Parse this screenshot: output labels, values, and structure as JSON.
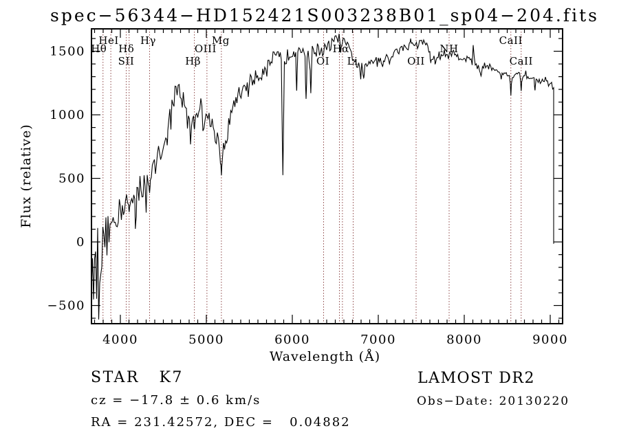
{
  "chart_data": {
    "type": "line",
    "title": "spec−56344−HD152421S003238B01_sp04−204.fits",
    "xlabel": "Wavelength (Å)",
    "ylabel": "Flux (relative)",
    "xlim": [
      3664,
      9144
    ],
    "ylim": [
      -643,
      1676
    ],
    "grid": false,
    "legend": null,
    "xticks_major": [
      4000,
      5000,
      6000,
      7000,
      8000,
      9000
    ],
    "xtick_minor_step": 100,
    "yticks_major": [
      -500,
      0,
      500,
      1000,
      1500
    ],
    "ytick_labels": [
      "−500",
      "0",
      "500",
      "1000",
      "1500"
    ],
    "ytick_minor_step": 100,
    "series_color": "#000000",
    "line_marker_color": "#8b4343",
    "line_markers": [
      {
        "label": "Hθ",
        "row": 2,
        "dx": -6,
        "lines": [
          3798
        ]
      },
      {
        "label": "HeI",
        "row": 1,
        "dx": -3,
        "lines": [
          3889
        ]
      },
      {
        "label": "SII",
        "row": 3,
        "dx": 0,
        "lines": [
          4068
        ]
      },
      {
        "label": "Hδ",
        "row": 2,
        "dx": -4,
        "lines": [
          4102
        ]
      },
      {
        "label": "Hγ",
        "row": 1,
        "dx": -2,
        "lines": [
          4340
        ]
      },
      {
        "label": "Hβ",
        "row": 3,
        "dx": -2,
        "lines": [
          4861
        ]
      },
      {
        "label": "OIII",
        "row": 2,
        "dx": -2,
        "lines": [
          5007
        ]
      },
      {
        "label": "Mg",
        "row": 1,
        "dx": -1,
        "lines": [
          5175
        ]
      },
      {
        "label": "OI",
        "row": 3,
        "dx": -1,
        "lines": [
          6364
        ]
      },
      {
        "label": "Hα",
        "row": 2,
        "dx": 0,
        "lines": [
          6548,
          6583
        ]
      },
      {
        "label": "Li",
        "row": 3,
        "dx": -1,
        "lines": [
          6708
        ]
      },
      {
        "label": "OII",
        "row": 3,
        "dx": 0,
        "lines": [
          7440
        ]
      },
      {
        "label": "NH",
        "row": 2,
        "dx": 0,
        "lines": [
          7824
        ]
      },
      {
        "label": "CaII",
        "row": 1,
        "dx": 0,
        "lines": [
          8542
        ]
      },
      {
        "label": "CaII",
        "row": 3,
        "dx": 0,
        "lines": [
          8662
        ]
      }
    ],
    "spectrum": {
      "envelope": [
        [
          3664,
          -120
        ],
        [
          3680,
          -200
        ],
        [
          3700,
          -180
        ],
        [
          3720,
          -280
        ],
        [
          3740,
          -230
        ],
        [
          3760,
          -130
        ],
        [
          3780,
          -60
        ],
        [
          3800,
          10
        ],
        [
          3830,
          60
        ],
        [
          3860,
          100
        ],
        [
          3890,
          130
        ],
        [
          3920,
          170
        ],
        [
          3950,
          205
        ],
        [
          3980,
          230
        ],
        [
          4010,
          260
        ],
        [
          4040,
          295
        ],
        [
          4070,
          320
        ],
        [
          4100,
          340
        ],
        [
          4130,
          330
        ],
        [
          4160,
          340
        ],
        [
          4190,
          375
        ],
        [
          4220,
          405
        ],
        [
          4250,
          435
        ],
        [
          4280,
          465
        ],
        [
          4310,
          495
        ],
        [
          4340,
          530
        ],
        [
          4370,
          570
        ],
        [
          4400,
          615
        ],
        [
          4430,
          655
        ],
        [
          4460,
          700
        ],
        [
          4490,
          755
        ],
        [
          4520,
          825
        ],
        [
          4550,
          905
        ],
        [
          4580,
          1005
        ],
        [
          4610,
          1095
        ],
        [
          4640,
          1165
        ],
        [
          4670,
          1215
        ],
        [
          4700,
          1190
        ],
        [
          4730,
          1125
        ],
        [
          4760,
          1030
        ],
        [
          4790,
          935
        ],
        [
          4820,
          890
        ],
        [
          4850,
          955
        ],
        [
          4880,
          1025
        ],
        [
          4910,
          1060
        ],
        [
          4940,
          1060
        ],
        [
          4970,
          1040
        ],
        [
          5000,
          1010
        ],
        [
          5030,
          970
        ],
        [
          5060,
          930
        ],
        [
          5090,
          880
        ],
        [
          5120,
          830
        ],
        [
          5150,
          785
        ],
        [
          5180,
          720
        ],
        [
          5210,
          755
        ],
        [
          5240,
          845
        ],
        [
          5270,
          940
        ],
        [
          5300,
          1040
        ],
        [
          5330,
          1100
        ],
        [
          5360,
          1140
        ],
        [
          5390,
          1170
        ],
        [
          5420,
          1200
        ],
        [
          5450,
          1230
        ],
        [
          5480,
          1250
        ],
        [
          5510,
          1265
        ],
        [
          5540,
          1280
        ],
        [
          5570,
          1290
        ],
        [
          5600,
          1300
        ],
        [
          5630,
          1320
        ],
        [
          5660,
          1345
        ],
        [
          5690,
          1370
        ],
        [
          5720,
          1400
        ],
        [
          5750,
          1430
        ],
        [
          5780,
          1450
        ],
        [
          5810,
          1450
        ],
        [
          5840,
          1440
        ],
        [
          5870,
          1430
        ],
        [
          5910,
          1440
        ],
        [
          5940,
          1460
        ],
        [
          5970,
          1485
        ],
        [
          6000,
          1505
        ],
        [
          6030,
          1510
        ],
        [
          6060,
          1490
        ],
        [
          6090,
          1465
        ],
        [
          6120,
          1470
        ],
        [
          6150,
          1480
        ],
        [
          6180,
          1450
        ],
        [
          6210,
          1465
        ],
        [
          6240,
          1500
        ],
        [
          6270,
          1515
        ],
        [
          6300,
          1510
        ],
        [
          6330,
          1515
        ],
        [
          6360,
          1505
        ],
        [
          6390,
          1515
        ],
        [
          6420,
          1530
        ],
        [
          6450,
          1550
        ],
        [
          6480,
          1570
        ],
        [
          6510,
          1590
        ],
        [
          6540,
          1605
        ],
        [
          6570,
          1595
        ],
        [
          6600,
          1570
        ],
        [
          6630,
          1545
        ],
        [
          6660,
          1515
        ],
        [
          6690,
          1475
        ],
        [
          6720,
          1435
        ],
        [
          6750,
          1395
        ],
        [
          6780,
          1365
        ],
        [
          6810,
          1350
        ],
        [
          6840,
          1365
        ],
        [
          6870,
          1395
        ],
        [
          6900,
          1420
        ],
        [
          6930,
          1435
        ],
        [
          6960,
          1448
        ],
        [
          6990,
          1455
        ],
        [
          7020,
          1435
        ],
        [
          7050,
          1415
        ],
        [
          7080,
          1430
        ],
        [
          7110,
          1448
        ],
        [
          7140,
          1465
        ],
        [
          7170,
          1480
        ],
        [
          7200,
          1495
        ],
        [
          7230,
          1508
        ],
        [
          7260,
          1518
        ],
        [
          7290,
          1526
        ],
        [
          7320,
          1532
        ],
        [
          7350,
          1540
        ],
        [
          7380,
          1548
        ],
        [
          7410,
          1555
        ],
        [
          7440,
          1560
        ],
        [
          7470,
          1566
        ],
        [
          7500,
          1570
        ],
        [
          7530,
          1566
        ],
        [
          7560,
          1556
        ],
        [
          7590,
          1515
        ],
        [
          7620,
          1460
        ],
        [
          7650,
          1445
        ],
        [
          7680,
          1455
        ],
        [
          7710,
          1470
        ],
        [
          7740,
          1488
        ],
        [
          7770,
          1498
        ],
        [
          7800,
          1495
        ],
        [
          7830,
          1488
        ],
        [
          7860,
          1482
        ],
        [
          7890,
          1474
        ],
        [
          7920,
          1466
        ],
        [
          7950,
          1458
        ],
        [
          7980,
          1450
        ],
        [
          8010,
          1445
        ],
        [
          8040,
          1436
        ],
        [
          8070,
          1428
        ],
        [
          8100,
          1440
        ],
        [
          8130,
          1415
        ],
        [
          8160,
          1380
        ],
        [
          8190,
          1345
        ],
        [
          8220,
          1385
        ],
        [
          8250,
          1398
        ],
        [
          8280,
          1385
        ],
        [
          8310,
          1370
        ],
        [
          8340,
          1358
        ],
        [
          8370,
          1348
        ],
        [
          8400,
          1340
        ],
        [
          8430,
          1333
        ],
        [
          8460,
          1327
        ],
        [
          8490,
          1321
        ],
        [
          8520,
          1316
        ],
        [
          8550,
          1311
        ],
        [
          8580,
          1317
        ],
        [
          8610,
          1321
        ],
        [
          8640,
          1316
        ],
        [
          8670,
          1311
        ],
        [
          8700,
          1314
        ],
        [
          8730,
          1305
        ],
        [
          8760,
          1296
        ],
        [
          8790,
          1288
        ],
        [
          8820,
          1281
        ],
        [
          8850,
          1274
        ],
        [
          8880,
          1267
        ],
        [
          8910,
          1260
        ],
        [
          8940,
          1254
        ],
        [
          8970,
          1248
        ],
        [
          9000,
          1242
        ],
        [
          9030,
          1236
        ],
        [
          9040,
          1230
        ]
      ],
      "noise_segments": [
        [
          3664,
          3790,
          290
        ],
        [
          3790,
          3920,
          140
        ],
        [
          3920,
          4300,
          110
        ],
        [
          4300,
          4700,
          90
        ],
        [
          4700,
          5300,
          75
        ],
        [
          5300,
          5900,
          60
        ],
        [
          5900,
          6500,
          55
        ],
        [
          6500,
          7000,
          40
        ],
        [
          7000,
          7600,
          25
        ],
        [
          7600,
          8300,
          30
        ],
        [
          8300,
          9040,
          22
        ]
      ],
      "dips": [
        [
          4102,
          235,
          8
        ],
        [
          4180,
          160,
          9
        ],
        [
          4340,
          385,
          10
        ],
        [
          4545,
          760,
          8
        ],
        [
          4861,
          885,
          8
        ],
        [
          5175,
          525,
          9
        ],
        [
          5890,
          525,
          11
        ],
        [
          6050,
          1190,
          9
        ],
        [
          6160,
          1125,
          11
        ],
        [
          6215,
          1170,
          9
        ],
        [
          6563,
          1490,
          8
        ],
        [
          6830,
          1290,
          12
        ],
        [
          7050,
          1380,
          10
        ],
        [
          7130,
          1400,
          10
        ],
        [
          7610,
          1412,
          10
        ],
        [
          7665,
          1405,
          10
        ],
        [
          7720,
          1435,
          9
        ],
        [
          8195,
          1305,
          10
        ],
        [
          8430,
          1280,
          7
        ],
        [
          8542,
          1152,
          8
        ],
        [
          8662,
          1188,
          8
        ],
        [
          8822,
          1192,
          8
        ]
      ],
      "peaks": [
        [
          8104,
          1548,
          6
        ],
        [
          7376,
          1600,
          6
        ]
      ],
      "end_drop": [
        9040,
        -15
      ],
      "seed": 12345,
      "step_angstrom": 12
    }
  },
  "footer": {
    "classification": "STAR   K7",
    "cz": "cz = −17.8 ± 0.6 km/s",
    "radec": "RA = 231.42572, DEC =   0.04882",
    "release": "LAMOST DR2",
    "obs_date": "Obs−Date: 20130220"
  }
}
